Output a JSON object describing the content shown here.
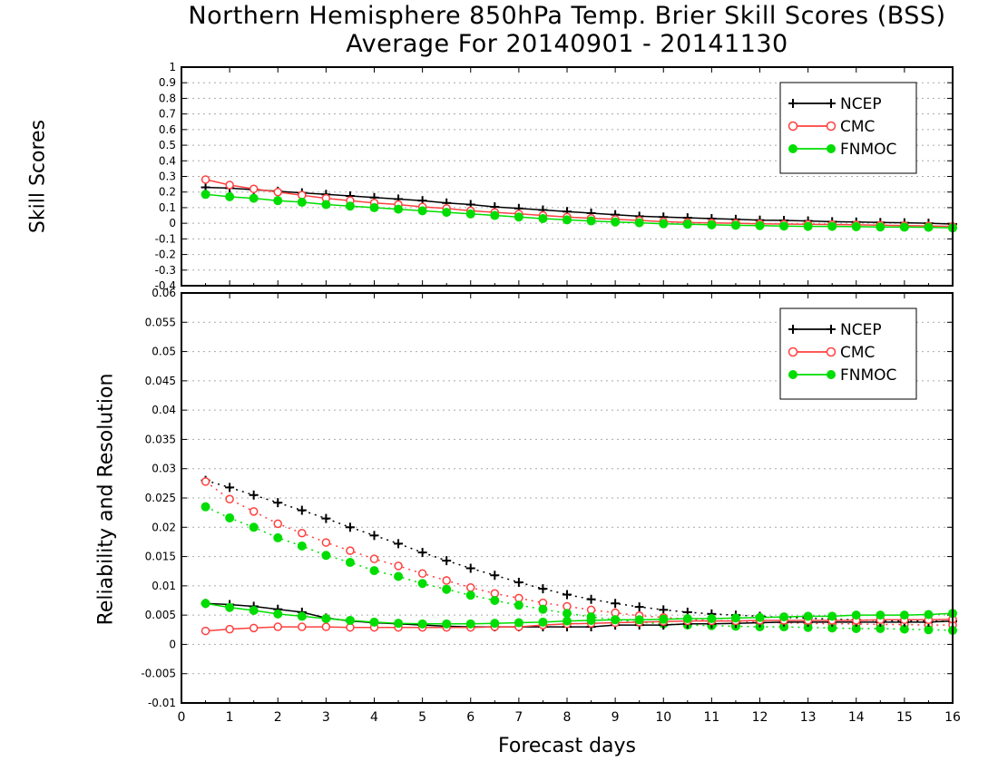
{
  "chart_data": [
    {
      "type": "line",
      "title": "Northern Hemisphere 850hPa Temp. Brier Skill Scores (BSS)",
      "subtitle": "Average For 20140901 - 20141130",
      "ylabel": "Skill Scores",
      "xlabel": "Forecast days",
      "xlim": [
        0,
        16
      ],
      "ylim": [
        -0.4,
        1.0
      ],
      "xticks": [
        "0",
        "1",
        "2",
        "3",
        "4",
        "5",
        "6",
        "7",
        "8",
        "9",
        "10",
        "11",
        "12",
        "13",
        "14",
        "15",
        "16"
      ],
      "yticks": [
        "-0.4",
        "-0.3",
        "-0.2",
        "-0.1",
        "0",
        "0.1",
        "0.2",
        "0.3",
        "0.4",
        "0.5",
        "0.6",
        "0.7",
        "0.8",
        "0.9",
        "1"
      ],
      "grid": true,
      "legend_position": "top-right",
      "x": [
        0.5,
        1,
        1.5,
        2,
        2.5,
        3,
        3.5,
        4,
        4.5,
        5,
        5.5,
        6,
        6.5,
        7,
        7.5,
        8,
        8.5,
        9,
        9.5,
        10,
        10.5,
        11,
        11.5,
        12,
        12.5,
        13,
        13.5,
        14,
        14.5,
        15,
        15.5,
        16
      ],
      "series": [
        {
          "name": "NCEP",
          "color": "#000000",
          "marker": "plus",
          "values": [
            0.23,
            0.225,
            0.215,
            0.205,
            0.195,
            0.185,
            0.175,
            0.165,
            0.155,
            0.145,
            0.13,
            0.12,
            0.105,
            0.095,
            0.085,
            0.075,
            0.065,
            0.055,
            0.045,
            0.04,
            0.035,
            0.03,
            0.025,
            0.02,
            0.018,
            0.015,
            0.01,
            0.008,
            0.005,
            0.003,
            0.0,
            -0.005
          ]
        },
        {
          "name": "CMC",
          "color": "#ff4040",
          "marker": "open-circle",
          "values": [
            0.28,
            0.245,
            0.22,
            0.2,
            0.18,
            0.16,
            0.145,
            0.13,
            0.12,
            0.105,
            0.095,
            0.08,
            0.07,
            0.06,
            0.05,
            0.04,
            0.032,
            0.025,
            0.018,
            0.01,
            0.005,
            0.002,
            0.0,
            -0.003,
            -0.005,
            -0.007,
            -0.008,
            -0.01,
            -0.012,
            -0.015,
            -0.017,
            -0.02
          ]
        },
        {
          "name": "FNMOC",
          "color": "#00dd00",
          "marker": "filled-circle",
          "values": [
            0.185,
            0.17,
            0.16,
            0.145,
            0.135,
            0.12,
            0.11,
            0.1,
            0.09,
            0.08,
            0.07,
            0.06,
            0.05,
            0.04,
            0.03,
            0.022,
            0.015,
            0.008,
            0.003,
            -0.003,
            -0.006,
            -0.01,
            -0.013,
            -0.015,
            -0.018,
            -0.02,
            -0.02,
            -0.022,
            -0.024,
            -0.025,
            -0.026,
            -0.03
          ]
        }
      ]
    },
    {
      "type": "line",
      "ylabel": "Reliability and Resolution",
      "xlabel": "Forecast days",
      "xlim": [
        0,
        16
      ],
      "ylim": [
        -0.01,
        0.06
      ],
      "xticks": [
        "0",
        "1",
        "2",
        "3",
        "4",
        "5",
        "6",
        "7",
        "8",
        "9",
        "10",
        "11",
        "12",
        "13",
        "14",
        "15",
        "16"
      ],
      "yticks": [
        "-0.01",
        "-0.005",
        "0",
        "0.005",
        "0.01",
        "0.015",
        "0.02",
        "0.025",
        "0.03",
        "0.035",
        "0.04",
        "0.045",
        "0.05",
        "0.055",
        "0.06"
      ],
      "grid": true,
      "legend_position": "top-right",
      "x": [
        0.5,
        1,
        1.5,
        2,
        2.5,
        3,
        3.5,
        4,
        4.5,
        5,
        5.5,
        6,
        6.5,
        7,
        7.5,
        8,
        8.5,
        9,
        9.5,
        10,
        10.5,
        11,
        11.5,
        12,
        12.5,
        13,
        13.5,
        14,
        14.5,
        15,
        15.5,
        16
      ],
      "series": [
        {
          "name": "NCEP",
          "color": "#000000",
          "marker": "plus",
          "line": "dotted",
          "values": [
            0.028,
            0.0268,
            0.0255,
            0.0242,
            0.0229,
            0.0215,
            0.02,
            0.0186,
            0.0172,
            0.0157,
            0.0143,
            0.013,
            0.0118,
            0.0106,
            0.0095,
            0.0085,
            0.0077,
            0.007,
            0.0064,
            0.0059,
            0.0055,
            0.0052,
            0.005,
            0.0048,
            0.0046,
            0.0045,
            0.0043,
            0.0042,
            0.0041,
            0.004,
            0.004,
            0.0039
          ]
        },
        {
          "name": "CMC",
          "color": "#ff4040",
          "marker": "open-circle",
          "line": "dotted",
          "values": [
            0.0278,
            0.0248,
            0.0227,
            0.0206,
            0.019,
            0.0174,
            0.016,
            0.0146,
            0.0134,
            0.0121,
            0.0109,
            0.0097,
            0.0087,
            0.0079,
            0.0071,
            0.0065,
            0.0059,
            0.0054,
            0.0049,
            0.0046,
            0.0043,
            0.0041,
            0.004,
            0.0038,
            0.0037,
            0.0036,
            0.0035,
            0.0035,
            0.0034,
            0.0034,
            0.0033,
            0.0033
          ]
        },
        {
          "name": "FNMOC",
          "color": "#00dd00",
          "marker": "filled-circle",
          "line": "dotted",
          "values": [
            0.0235,
            0.0216,
            0.02,
            0.0182,
            0.0168,
            0.0152,
            0.014,
            0.0126,
            0.0116,
            0.0104,
            0.0094,
            0.0084,
            0.0075,
            0.0067,
            0.006,
            0.0053,
            0.0047,
            0.0042,
            0.0038,
            0.0035,
            0.0033,
            0.0032,
            0.0031,
            0.003,
            0.003,
            0.0029,
            0.0028,
            0.0027,
            0.0027,
            0.0026,
            0.0025,
            0.0024
          ]
        },
        {
          "name": "NCEP",
          "color": "#000000",
          "marker": "plus",
          "line": "solid",
          "values": [
            0.007,
            0.0068,
            0.0065,
            0.006,
            0.0055,
            0.0045,
            0.004,
            0.0037,
            0.0035,
            0.0033,
            0.0031,
            0.003,
            0.003,
            0.003,
            0.003,
            0.003,
            0.003,
            0.0033,
            0.0033,
            0.0033,
            0.0035,
            0.0035,
            0.0036,
            0.0037,
            0.0038,
            0.0038,
            0.0038,
            0.0038,
            0.0038,
            0.0038,
            0.0038,
            0.004
          ]
        },
        {
          "name": "CMC",
          "color": "#ff4040",
          "marker": "open-circle",
          "line": "solid",
          "values": [
            0.0023,
            0.0026,
            0.0028,
            0.003,
            0.003,
            0.003,
            0.0029,
            0.0029,
            0.0029,
            0.0029,
            0.0029,
            0.0029,
            0.003,
            0.003,
            0.0033,
            0.0035,
            0.0036,
            0.0037,
            0.0038,
            0.0039,
            0.004,
            0.004,
            0.004,
            0.0041,
            0.0041,
            0.0041,
            0.0041,
            0.0041,
            0.0042,
            0.0042,
            0.0042,
            0.0043
          ]
        },
        {
          "name": "FNMOC",
          "color": "#00dd00",
          "marker": "filled-circle",
          "line": "solid",
          "values": [
            0.007,
            0.0063,
            0.0058,
            0.0052,
            0.0048,
            0.0044,
            0.0041,
            0.0038,
            0.0036,
            0.0035,
            0.0035,
            0.0035,
            0.0036,
            0.0037,
            0.0038,
            0.004,
            0.0041,
            0.0042,
            0.0042,
            0.0043,
            0.0044,
            0.0044,
            0.0045,
            0.0046,
            0.0047,
            0.0048,
            0.0048,
            0.005,
            0.005,
            0.005,
            0.0051,
            0.0053
          ]
        }
      ]
    }
  ],
  "legend_entries": [
    "NCEP",
    "CMC",
    "FNMOC"
  ]
}
